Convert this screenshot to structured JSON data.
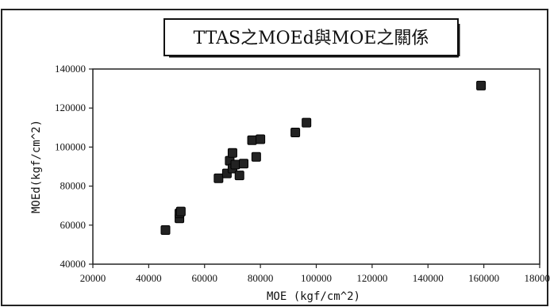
{
  "chart_data": {
    "type": "scatter",
    "title": "TTAS之MOEd與MOE之關係",
    "xlabel": "MOE (kgf/cm^2)",
    "ylabel": "MOEd(kgf/cm^2)",
    "xlim": [
      20000,
      180000
    ],
    "ylim": [
      40000,
      140000
    ],
    "x_ticks": [
      20000,
      40000,
      60000,
      80000,
      100000,
      120000,
      140000,
      160000,
      180000
    ],
    "x_tick_labels": [
      "20000",
      "40000",
      "60000",
      "80000",
      "100000",
      "120000",
      "140000",
      "160000",
      "180000"
    ],
    "y_ticks": [
      40000,
      60000,
      80000,
      100000,
      120000,
      140000
    ],
    "y_tick_labels": [
      "40000",
      "60000",
      "80000",
      "100000",
      "120000",
      "140000"
    ],
    "grid": false,
    "legend": "none",
    "marker": "square",
    "marker_color": "#222222",
    "series": [
      {
        "points": [
          {
            "x": 46000,
            "y": 57500
          },
          {
            "x": 51000,
            "y": 63500
          },
          {
            "x": 51000,
            "y": 66000
          },
          {
            "x": 51500,
            "y": 67000
          },
          {
            "x": 65000,
            "y": 84000
          },
          {
            "x": 68000,
            "y": 86500
          },
          {
            "x": 69000,
            "y": 93000
          },
          {
            "x": 70000,
            "y": 97000
          },
          {
            "x": 70000,
            "y": 89000
          },
          {
            "x": 71000,
            "y": 91000
          },
          {
            "x": 72500,
            "y": 85500
          },
          {
            "x": 74000,
            "y": 91500
          },
          {
            "x": 77000,
            "y": 103500
          },
          {
            "x": 78500,
            "y": 95000
          },
          {
            "x": 80000,
            "y": 104000
          },
          {
            "x": 92500,
            "y": 107500
          },
          {
            "x": 96500,
            "y": 112500
          },
          {
            "x": 159000,
            "y": 131500
          }
        ]
      }
    ]
  }
}
